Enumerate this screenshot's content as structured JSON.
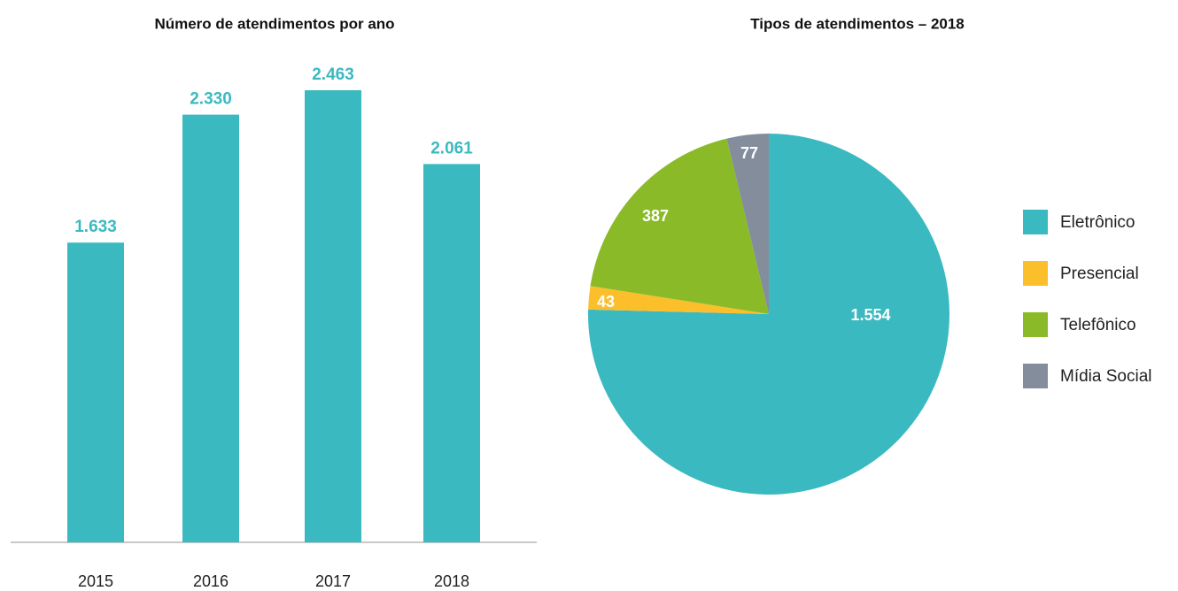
{
  "chart_data": [
    {
      "type": "bar",
      "title": "Número de atendimentos por ano",
      "categories": [
        "2015",
        "2016",
        "2017",
        "2018"
      ],
      "values": [
        1633,
        2330,
        2463,
        2061
      ],
      "value_labels": [
        "1.633",
        "2.330",
        "2.463",
        "2.061"
      ],
      "color": "#3bb9c1"
    },
    {
      "type": "pie",
      "title": "Tipos de atendimentos – 2018",
      "categories": [
        "Eletrônico",
        "Presencial",
        "Telefônico",
        "Mídia Social"
      ],
      "values": [
        1554,
        43,
        387,
        77
      ],
      "value_labels": [
        "1.554",
        "43",
        "387",
        "77"
      ],
      "colors": [
        "#3bb9c1",
        "#fbbf2b",
        "#8aba28",
        "#838d9c"
      ],
      "legend": "right"
    }
  ]
}
